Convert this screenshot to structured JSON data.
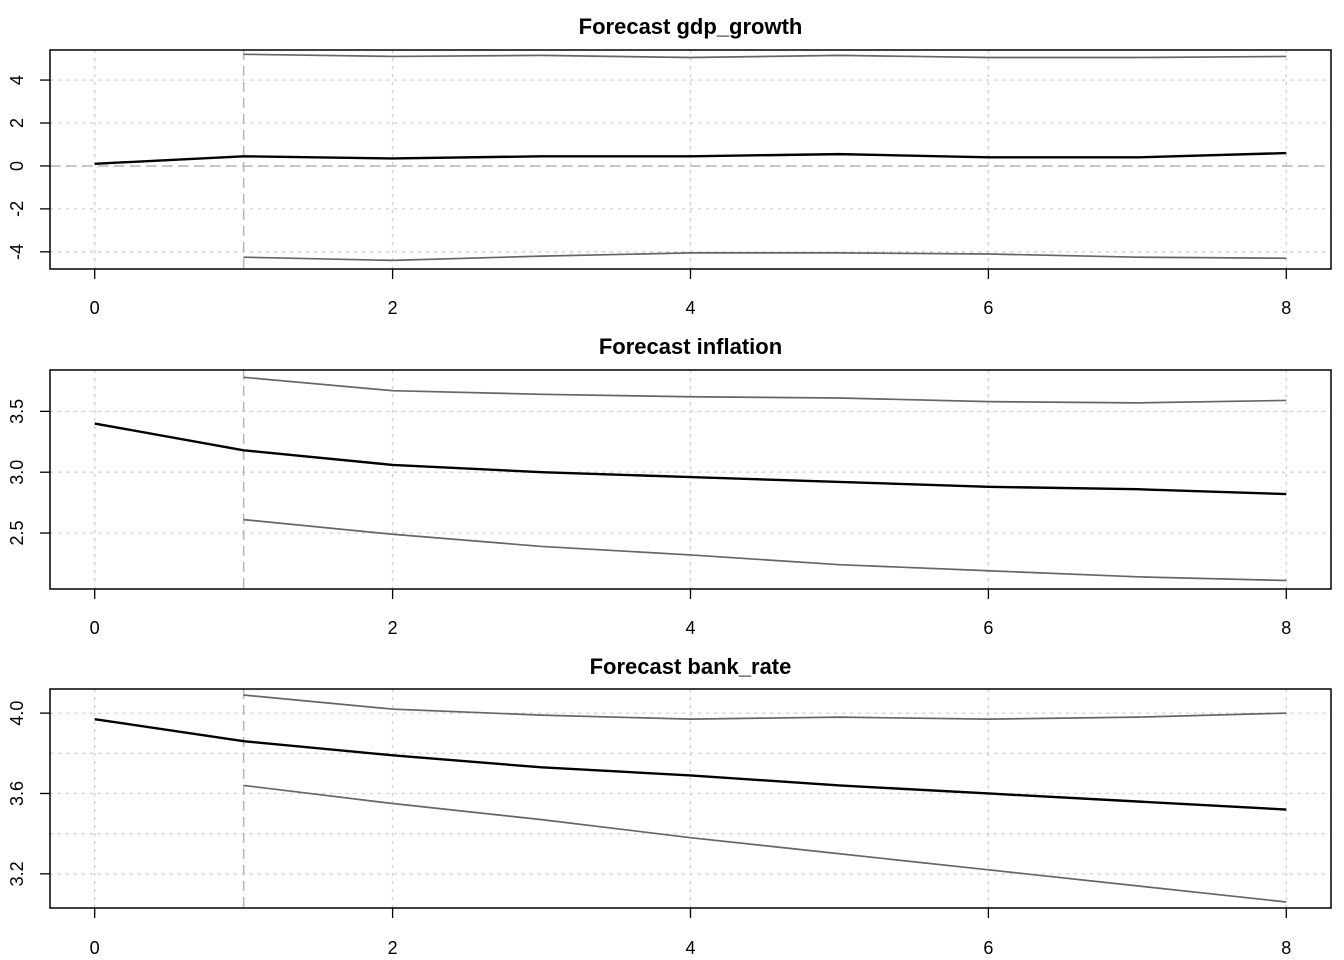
{
  "chart_data": [
    {
      "type": "line",
      "title": "Forecast gdp_growth",
      "xlabel": "",
      "ylabel": "",
      "x_ticks": [
        0,
        2,
        4,
        6,
        8
      ],
      "y_ticks": [
        -4,
        -2,
        0,
        2,
        4
      ],
      "xlim": [
        -0.3,
        8.3
      ],
      "ylim": [
        -4.8,
        5.4
      ],
      "grid": true,
      "zero_line": true,
      "forecast_start": 1,
      "series": [
        {
          "x": [
            0,
            1,
            2,
            3,
            4,
            5,
            6,
            7,
            8
          ],
          "values": [
            0.1,
            0.45,
            0.35,
            0.45,
            0.45,
            0.55,
            0.4,
            0.4,
            0.6
          ],
          "color": "#000000"
        },
        {
          "x": [
            1,
            2,
            3,
            4,
            5,
            6,
            7,
            8
          ],
          "values": [
            5.2,
            5.1,
            5.15,
            5.05,
            5.15,
            5.05,
            5.05,
            5.1
          ],
          "color": "#666666"
        },
        {
          "x": [
            1,
            2,
            3,
            4,
            5,
            6,
            7,
            8
          ],
          "values": [
            -4.25,
            -4.4,
            -4.2,
            -4.05,
            -4.05,
            -4.1,
            -4.25,
            -4.3
          ],
          "color": "#666666"
        }
      ]
    },
    {
      "type": "line",
      "title": "Forecast inflation",
      "xlabel": "",
      "ylabel": "",
      "x_ticks": [
        0,
        2,
        4,
        6,
        8
      ],
      "y_ticks": [
        "2.5",
        "3.0",
        "3.5"
      ],
      "xlim": [
        -0.3,
        8.3
      ],
      "ylim": [
        2.04,
        3.84
      ],
      "grid": true,
      "zero_line": false,
      "forecast_start": 1,
      "series": [
        {
          "x": [
            0,
            1,
            2,
            3,
            4,
            5,
            6,
            7,
            8
          ],
          "values": [
            3.4,
            3.18,
            3.06,
            3.0,
            2.96,
            2.92,
            2.88,
            2.86,
            2.82
          ],
          "color": "#000000"
        },
        {
          "x": [
            1,
            2,
            3,
            4,
            5,
            6,
            7,
            8
          ],
          "values": [
            3.78,
            3.67,
            3.64,
            3.62,
            3.61,
            3.58,
            3.57,
            3.59
          ],
          "color": "#666666"
        },
        {
          "x": [
            1,
            2,
            3,
            4,
            5,
            6,
            7,
            8
          ],
          "values": [
            2.61,
            2.49,
            2.39,
            2.32,
            2.24,
            2.19,
            2.14,
            2.11
          ],
          "color": "#666666"
        }
      ]
    },
    {
      "type": "line",
      "title": "Forecast bank_rate",
      "xlabel": "",
      "ylabel": "",
      "x_ticks": [
        0,
        2,
        4,
        6,
        8
      ],
      "y_ticks": [
        "3.2",
        "3.6",
        "4.0"
      ],
      "y_grid": [
        3.2,
        3.4,
        3.6,
        3.8,
        4.0
      ],
      "xlim": [
        -0.3,
        8.3
      ],
      "ylim": [
        3.03,
        4.12
      ],
      "grid": true,
      "zero_line": false,
      "forecast_start": 1,
      "series": [
        {
          "x": [
            0,
            1,
            2,
            3,
            4,
            5,
            6,
            7,
            8
          ],
          "values": [
            3.97,
            3.86,
            3.79,
            3.73,
            3.69,
            3.64,
            3.6,
            3.56,
            3.52
          ],
          "color": "#000000"
        },
        {
          "x": [
            1,
            2,
            3,
            4,
            5,
            6,
            7,
            8
          ],
          "values": [
            4.09,
            4.02,
            3.99,
            3.97,
            3.98,
            3.97,
            3.98,
            4.0
          ],
          "color": "#666666"
        },
        {
          "x": [
            1,
            2,
            3,
            4,
            5,
            6,
            7,
            8
          ],
          "values": [
            3.64,
            3.55,
            3.47,
            3.38,
            3.3,
            3.22,
            3.14,
            3.06
          ],
          "color": "#666666"
        }
      ]
    }
  ]
}
